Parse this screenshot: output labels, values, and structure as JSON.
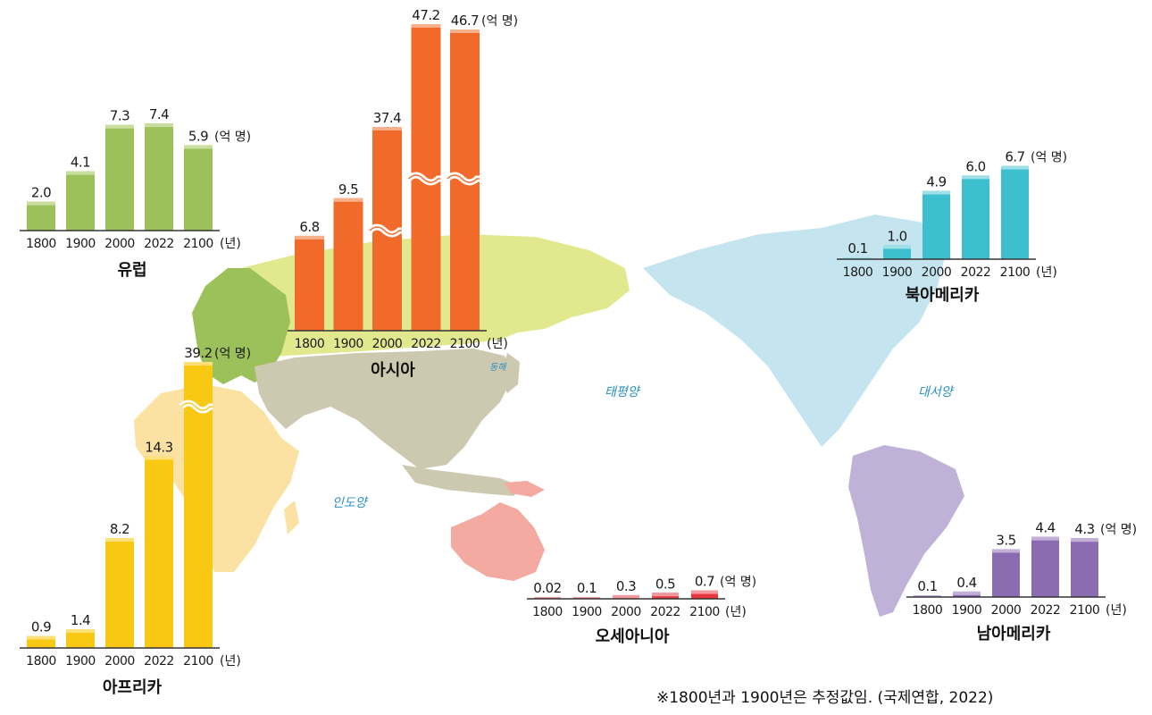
{
  "map": {
    "oceans": [
      {
        "key": "indian",
        "label": "인도양"
      },
      {
        "key": "pacific",
        "label": "태평양"
      },
      {
        "key": "atlantic",
        "label": "대서양"
      },
      {
        "key": "east_sea",
        "label": "동해"
      }
    ],
    "region_colors": {
      "europe": "#9dc15a",
      "asia_north": "#e2e88e",
      "asia_south": "#cdc9b0",
      "africa": "#fbe2a2",
      "oceania": "#f4aaa0",
      "north_america": "#c4e4ef",
      "south_america": "#bfb1d8"
    }
  },
  "footnote": "※1800년과 1900년은 추정값임. (국제연합, 2022)",
  "chart_data": [
    {
      "type": "bar",
      "key": "europe",
      "title": "유럽",
      "color": "#9dc15a",
      "light": "#c9de9f",
      "categories": [
        "1800",
        "1900",
        "2000",
        "2022",
        "2100"
      ],
      "values": [
        2.0,
        4.1,
        7.3,
        7.4,
        5.9
      ],
      "labels": [
        "2.0",
        "4.1",
        "7.3",
        "7.4",
        "5.9"
      ],
      "unit": "(억 명)",
      "xunit": "(년)",
      "broken": []
    },
    {
      "type": "bar",
      "key": "asia",
      "title": "아시아",
      "color": "#f26a2a",
      "light": "#f8b08a",
      "categories": [
        "1800",
        "1900",
        "2000",
        "2022",
        "2100"
      ],
      "values": [
        6.8,
        9.5,
        37.4,
        47.2,
        46.7
      ],
      "labels": [
        "6.8",
        "9.5",
        "37.4",
        "47.2",
        "46.7"
      ],
      "unit": "(억 명)",
      "xunit": "(년)",
      "broken": [
        2,
        3,
        4
      ]
    },
    {
      "type": "bar",
      "key": "africa",
      "title": "아프리카",
      "color": "#f9c812",
      "light": "#fde07a",
      "categories": [
        "1800",
        "1900",
        "2000",
        "2022",
        "2100"
      ],
      "values": [
        0.9,
        1.4,
        8.2,
        14.3,
        39.2
      ],
      "labels": [
        "0.9",
        "1.4",
        "8.2",
        "14.3",
        "39.2"
      ],
      "unit": "(억 명)",
      "xunit": "(년)",
      "broken": [
        4
      ]
    },
    {
      "type": "bar",
      "key": "north_america",
      "title": "북아메리카",
      "color": "#3dbfcf",
      "light": "#9fdfe7",
      "categories": [
        "1800",
        "1900",
        "2000",
        "2022",
        "2100"
      ],
      "values": [
        0.1,
        1.0,
        4.9,
        6.0,
        6.7
      ],
      "labels": [
        "0.1",
        "1.0",
        "4.9",
        "6.0",
        "6.7"
      ],
      "unit": "(억 명)",
      "xunit": "(년)",
      "broken": []
    },
    {
      "type": "bar",
      "key": "oceania",
      "title": "오세아니아",
      "color": "#e8363f",
      "light": "#f3999d",
      "categories": [
        "1800",
        "1900",
        "2000",
        "2022",
        "2100"
      ],
      "values": [
        0.02,
        0.1,
        0.3,
        0.5,
        0.7
      ],
      "labels": [
        "0.02",
        "0.1",
        "0.3",
        "0.5",
        "0.7"
      ],
      "unit": "(억 명)",
      "xunit": "(년)",
      "broken": []
    },
    {
      "type": "bar",
      "key": "south_america",
      "title": "남아메리카",
      "color": "#8b6bb1",
      "light": "#c2b0d8",
      "categories": [
        "1800",
        "1900",
        "2000",
        "2022",
        "2100"
      ],
      "values": [
        0.1,
        0.4,
        3.5,
        4.4,
        4.3
      ],
      "labels": [
        "0.1",
        "0.4",
        "3.5",
        "4.4",
        "4.3"
      ],
      "unit": "(억 명)",
      "xunit": "(년)",
      "broken": []
    }
  ]
}
